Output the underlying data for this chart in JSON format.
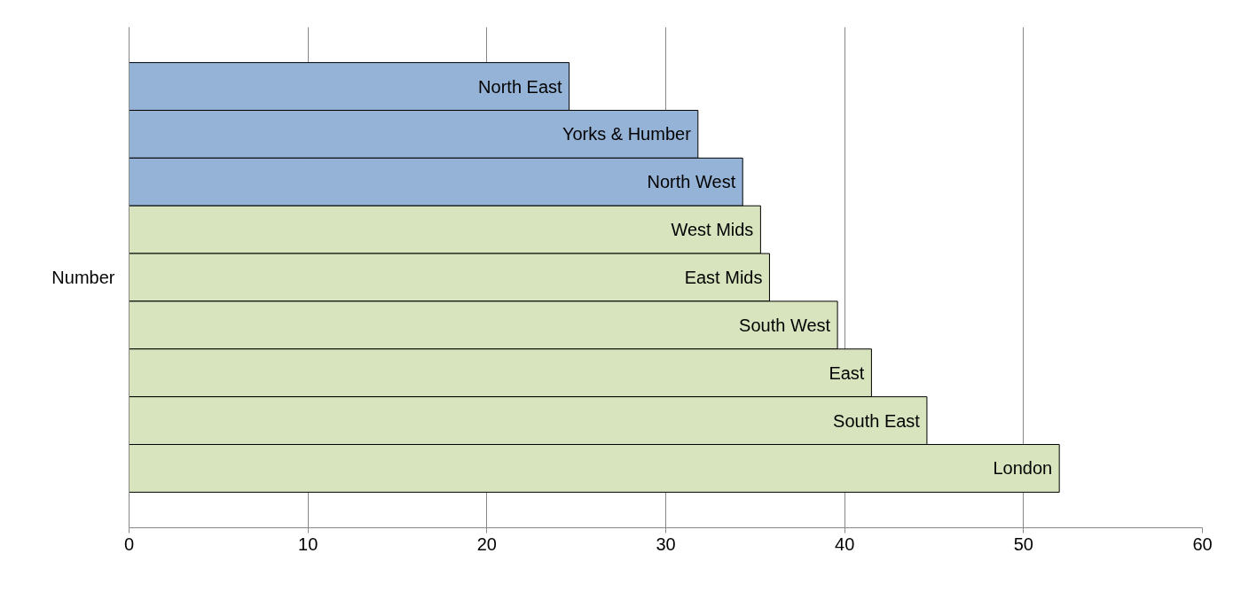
{
  "chart_data": {
    "type": "bar",
    "orientation": "horizontal",
    "categories": [
      "Number"
    ],
    "series": [
      {
        "name": "North East",
        "color": "#95b3d7",
        "values": [
          24.6
        ]
      },
      {
        "name": "Yorks & Humber",
        "color": "#95b3d7",
        "values": [
          31.8
        ]
      },
      {
        "name": "North West",
        "color": "#95b3d7",
        "values": [
          34.3
        ]
      },
      {
        "name": "West Mids",
        "color": "#d7e4bd",
        "values": [
          35.3
        ]
      },
      {
        "name": "East Mids",
        "color": "#d7e4bd",
        "values": [
          35.8
        ]
      },
      {
        "name": "South West",
        "color": "#d7e4bd",
        "values": [
          39.6
        ]
      },
      {
        "name": "East",
        "color": "#d7e4bd",
        "values": [
          41.5
        ]
      },
      {
        "name": "South East",
        "color": "#d7e4bd",
        "values": [
          44.6
        ]
      },
      {
        "name": "London",
        "color": "#d7e4bd",
        "values": [
          52.0
        ]
      }
    ],
    "xlim": [
      0,
      60
    ],
    "xticks": [
      0,
      10,
      20,
      30,
      40,
      50,
      60
    ],
    "grid": "x"
  }
}
